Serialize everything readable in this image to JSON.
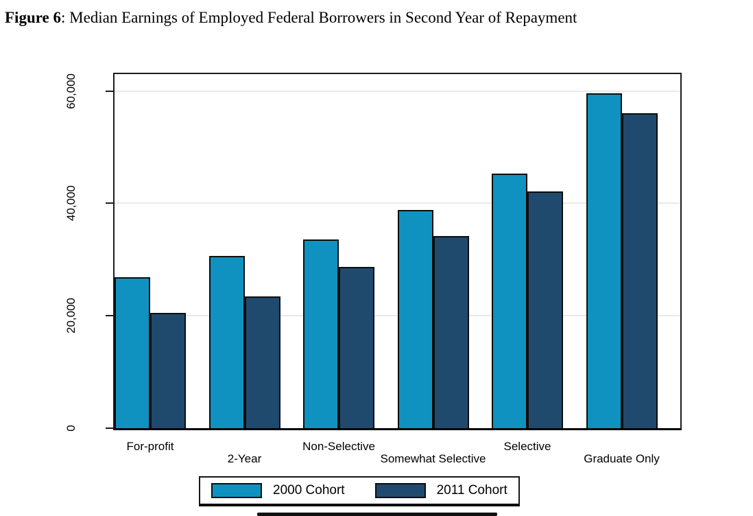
{
  "title": {
    "prefix": "Figure 6",
    "rest": ": Median Earnings of Employed Federal Borrowers in Second Year of Repayment"
  },
  "chart_data": {
    "type": "bar",
    "title": "Figure 6: Median Earnings of Employed Federal Borrowers in Second Year of Repayment",
    "categories": [
      "For-profit",
      "2-Year",
      "Non-Selective",
      "Somewhat Selective",
      "Selective",
      "Graduate Only"
    ],
    "series": [
      {
        "name": "2000 Cohort",
        "color": "#0f92bf",
        "values": [
          26900,
          30700,
          33600,
          38800,
          45300,
          59600
        ]
      },
      {
        "name": "2011 Cohort",
        "color": "#1f4a6d",
        "values": [
          20500,
          23400,
          28700,
          34200,
          42100,
          56100
        ]
      }
    ],
    "xlabel": "",
    "ylabel": "",
    "ylim": [
      0,
      63000
    ],
    "yticks": [
      0,
      20000,
      40000,
      60000
    ],
    "ytick_labels": [
      "0",
      "20,000",
      "40,000",
      "60,000"
    ],
    "grid": "horizontal-light",
    "legend_position": "bottom-center",
    "bar_border_color": "#0d0d0d",
    "gridline_color": "#e9e9e9",
    "frame_color": "#1c1c1c"
  },
  "legend": {
    "items": [
      {
        "label": "2000 Cohort",
        "color": "#0f92bf"
      },
      {
        "label": "2011 Cohort",
        "color": "#1f4a6d"
      }
    ]
  }
}
